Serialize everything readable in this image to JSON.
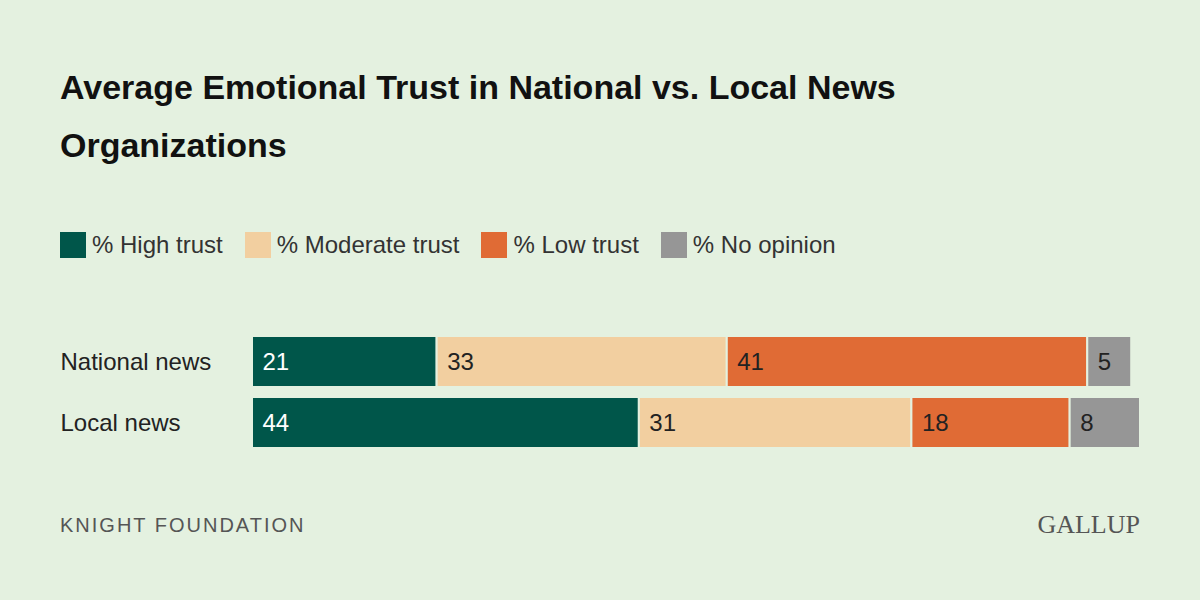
{
  "chart_data": {
    "type": "bar",
    "orientation": "horizontal",
    "stacked": true,
    "data_labels": true,
    "tick_labels": "y",
    "grid": false,
    "legend": "top",
    "title": "Average Emotional Trust in National vs. Local News Organizations",
    "categories": [
      "National news",
      "Local news"
    ],
    "series": [
      {
        "name": "% High trust",
        "color": "#00564a",
        "values": [
          21,
          44
        ]
      },
      {
        "name": "% Moderate trust",
        "color": "#f2cfa0",
        "values": [
          33,
          31
        ]
      },
      {
        "name": "% Low trust",
        "color": "#e06b35",
        "values": [
          41,
          18
        ]
      },
      {
        "name": "% No opinion",
        "color": "#969696",
        "values": [
          5,
          8
        ]
      }
    ],
    "xlim": [
      0,
      101
    ],
    "xticks": [],
    "annotations": [
      "KNIGHT FOUNDATION",
      "GALLUP"
    ]
  }
}
